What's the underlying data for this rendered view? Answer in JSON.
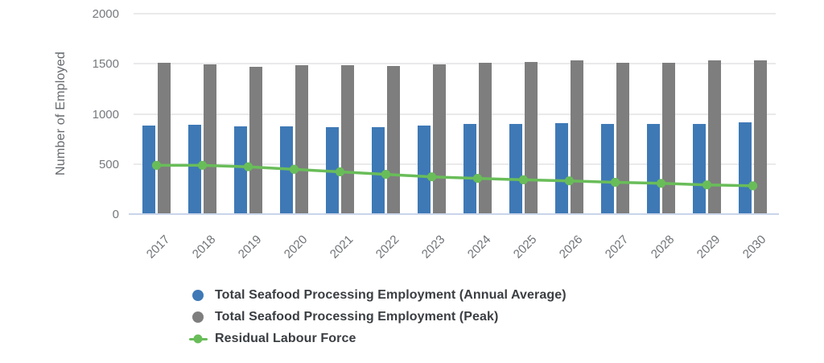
{
  "chart_data": {
    "type": "bar",
    "subtype": "grouped-bars-with-line-overlay",
    "title": "",
    "xlabel": "",
    "ylabel": "Number of Employed",
    "ylim": [
      0,
      2000
    ],
    "yticks": [
      0,
      500,
      1000,
      1500,
      2000
    ],
    "grid": true,
    "legend_position": "bottom-left",
    "categories": [
      "2017",
      "2018",
      "2019",
      "2020",
      "2021",
      "2022",
      "2023",
      "2024",
      "2025",
      "2026",
      "2027",
      "2028",
      "2029",
      "2030"
    ],
    "series": [
      {
        "name": "Total Seafood Processing Employment (Annual Average)",
        "type": "bar",
        "color": "#3e79b6",
        "values": [
          875,
          880,
          865,
          865,
          860,
          860,
          875,
          890,
          895,
          900,
          895,
          895,
          895,
          910
        ]
      },
      {
        "name": "Total Seafood Processing Employment (Peak)",
        "type": "bar",
        "color": "#7e7e7e",
        "values": [
          1505,
          1490,
          1460,
          1475,
          1475,
          1470,
          1485,
          1500,
          1510,
          1525,
          1505,
          1505,
          1525,
          1525
        ]
      },
      {
        "name": "Residual Labour Force",
        "type": "line",
        "color": "#69bd59",
        "values": [
          495,
          495,
          480,
          455,
          430,
          405,
          380,
          365,
          350,
          340,
          325,
          315,
          300,
          290
        ]
      }
    ]
  },
  "colors": {
    "gridline": "#eaeaec",
    "baseline": "#c9d5ea",
    "tick_text": "#75797d",
    "xlabel_text": "#6e7276",
    "axis_title_text": "#666a6e",
    "legend_text": "#3a3e42",
    "background": "#ffffff"
  }
}
